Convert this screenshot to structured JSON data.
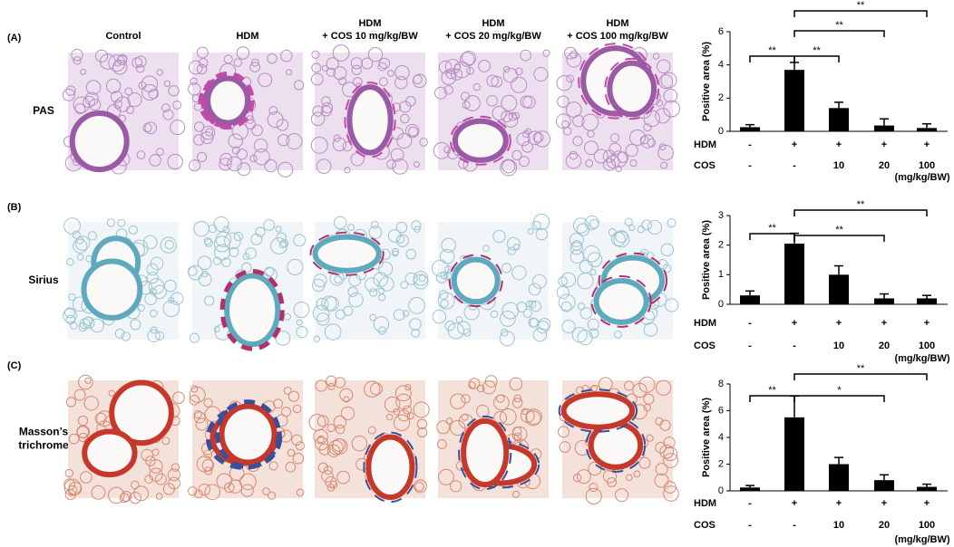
{
  "panel_labels": [
    "(A)",
    "(B)",
    "(C)"
  ],
  "row_labels": [
    [
      "PAS"
    ],
    [
      "Sirius"
    ],
    [
      "Masson’s",
      "trichrome"
    ]
  ],
  "column_headers": [
    [
      "Control"
    ],
    [
      "HDM"
    ],
    [
      "HDM",
      "+ COS 10 mg/kg/BW"
    ],
    [
      "HDM",
      "+ COS 20 mg/kg/BW"
    ],
    [
      "HDM",
      "+ COS 100 mg/kg/BW"
    ]
  ],
  "chart_data": [
    {
      "type": "bar",
      "ylabel": "Positive area (%)",
      "color": "#000000",
      "values": [
        0.25,
        3.7,
        1.4,
        0.35,
        0.2
      ],
      "errors": [
        0.15,
        0.45,
        0.35,
        0.4,
        0.25
      ],
      "ylim": [
        0,
        6
      ],
      "yticks": [
        0,
        2,
        4,
        6
      ],
      "rows": [
        {
          "label": "HDM",
          "cells": [
            "-",
            "+",
            "+",
            "+",
            "+"
          ]
        },
        {
          "label": "COS",
          "cells": [
            "-",
            "-",
            "10",
            "20",
            "100"
          ]
        }
      ],
      "unit": "(mg/kg/BW)",
      "significance": [
        {
          "pair": [
            0,
            1
          ],
          "label": "**"
        },
        {
          "pair": [
            1,
            2
          ],
          "label": "**"
        },
        {
          "pair": [
            1,
            3
          ],
          "label": "**"
        },
        {
          "pair": [
            1,
            4
          ],
          "label": "**"
        }
      ]
    },
    {
      "type": "bar",
      "ylabel": "Positive area (%)",
      "color": "#000000",
      "values": [
        0.3,
        2.05,
        1.0,
        0.2,
        0.2
      ],
      "errors": [
        0.15,
        0.35,
        0.3,
        0.15,
        0.1
      ],
      "ylim": [
        0,
        3
      ],
      "yticks": [
        0,
        1,
        2,
        3
      ],
      "rows": [
        {
          "label": "HDM",
          "cells": [
            "-",
            "+",
            "+",
            "+",
            "+"
          ]
        },
        {
          "label": "COS",
          "cells": [
            "-",
            "-",
            "10",
            "20",
            "100"
          ]
        }
      ],
      "unit": "(mg/kg/BW)",
      "significance": [
        {
          "pair": [
            0,
            1
          ],
          "label": "**"
        },
        {
          "pair": [
            1,
            3
          ],
          "label": "**"
        },
        {
          "pair": [
            1,
            4
          ],
          "label": "**"
        }
      ]
    },
    {
      "type": "bar",
      "ylabel": "Positive area (%)",
      "color": "#000000",
      "values": [
        0.25,
        5.5,
        2.0,
        0.8,
        0.3
      ],
      "errors": [
        0.15,
        1.6,
        0.5,
        0.4,
        0.2
      ],
      "ylim": [
        0,
        8
      ],
      "yticks": [
        0,
        2,
        4,
        6,
        8
      ],
      "rows": [
        {
          "label": "HDM",
          "cells": [
            "-",
            "+",
            "+",
            "+",
            "+"
          ]
        },
        {
          "label": "COS",
          "cells": [
            "-",
            "-",
            "10",
            "20",
            "100"
          ]
        }
      ],
      "unit": "(mg/kg/BW)",
      "significance": [
        {
          "pair": [
            0,
            1
          ],
          "label": "**"
        },
        {
          "pair": [
            1,
            3
          ],
          "label": "*"
        },
        {
          "pair": [
            1,
            4
          ],
          "label": "**"
        }
      ]
    }
  ]
}
